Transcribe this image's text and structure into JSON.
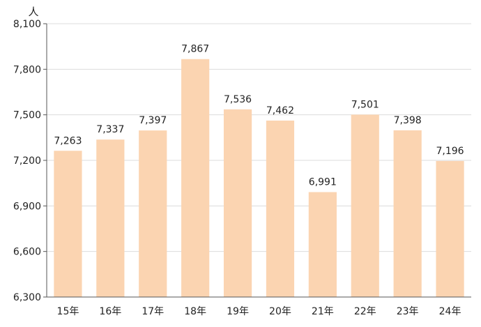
{
  "chart_data": {
    "type": "bar",
    "categories": [
      "15年",
      "16年",
      "17年",
      "18年",
      "19年",
      "20年",
      "21年",
      "22年",
      "23年",
      "24年"
    ],
    "values": [
      7263,
      7337,
      7397,
      7867,
      7536,
      7462,
      6991,
      7501,
      7398,
      7196
    ],
    "value_labels": [
      "7,263",
      "7,337",
      "7,397",
      "7,867",
      "7,536",
      "7,462",
      "6,991",
      "7,501",
      "7,398",
      "7,196"
    ],
    "y_unit": "人",
    "ylim": [
      6300,
      8100
    ],
    "y_ticks": [
      6300,
      6600,
      6900,
      7200,
      7500,
      7800,
      8100
    ],
    "y_tick_labels": [
      "6,300",
      "6,600",
      "6,900",
      "7,200",
      "7,500",
      "7,800",
      "8,100"
    ],
    "grid": true,
    "bar_color": "#fbd4b1",
    "grid_color": "#dcdcdc",
    "axis_color": "#555555"
  }
}
